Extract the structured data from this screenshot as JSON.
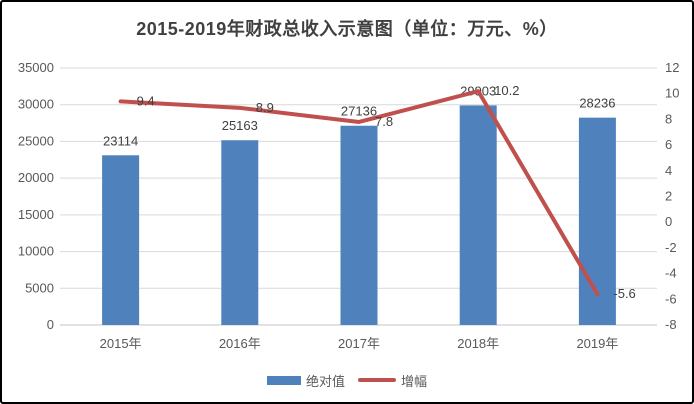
{
  "chart_data": {
    "type": "combo (bar + line, dual axis)",
    "title": "2015-2019年财政总收入示意图（单位：万元、%）",
    "categories": [
      "2015年",
      "2016年",
      "2017年",
      "2018年",
      "2019年"
    ],
    "series": [
      {
        "name": "绝对值",
        "type": "bar",
        "axis": "left",
        "color": "#4F81BD",
        "values": [
          23114,
          25163,
          27136,
          29903,
          28236
        ],
        "data_labels": [
          "23114",
          "25163",
          "27136",
          "29903",
          "28236"
        ]
      },
      {
        "name": "增幅",
        "type": "line",
        "axis": "right",
        "color": "#C0504D",
        "values": [
          9.4,
          8.9,
          7.8,
          10.2,
          -5.6
        ],
        "data_labels": [
          "9.4",
          "8.9",
          "7.8",
          "10.2",
          "-5.6"
        ]
      }
    ],
    "left_axis": {
      "min": 0,
      "max": 35000,
      "step": 5000,
      "tick_labels": [
        "0",
        "5000",
        "10000",
        "15000",
        "20000",
        "25000",
        "30000",
        "35000"
      ]
    },
    "right_axis": {
      "min": -8,
      "max": 12,
      "step": 2,
      "tick_labels": [
        "-8",
        "-6",
        "-4",
        "-2",
        "0",
        "2",
        "4",
        "6",
        "8",
        "10",
        "12"
      ]
    },
    "grid": true,
    "legend_position": "bottom"
  },
  "colors": {
    "bar": "#4F81BD",
    "line": "#C0504D",
    "gridline": "#D9D9D9",
    "axis_line": "#C6C6C6",
    "axis_text": "#595959",
    "data_label_text": "#404040",
    "title_text": "#404040",
    "frame_border": "#000000",
    "background": "#FFFFFF"
  }
}
